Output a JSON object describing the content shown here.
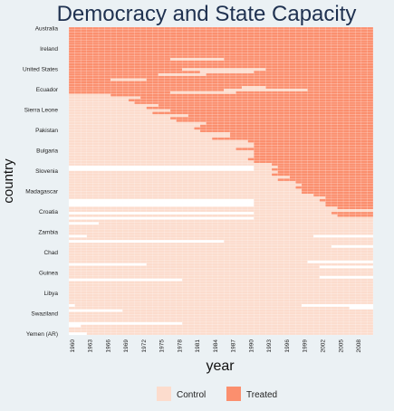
{
  "chart_data": {
    "type": "heatmap",
    "title": "Democracy and State Capacity",
    "xlabel": "year",
    "ylabel": "country",
    "x_start": 1960,
    "x_end": 2010,
    "x_tick_labels": [
      "1960",
      "1963",
      "1966",
      "1969",
      "1972",
      "1975",
      "1978",
      "1981",
      "1984",
      "1987",
      "1990",
      "1993",
      "1996",
      "1999",
      "2002",
      "2005",
      "2008"
    ],
    "y_tick_labels": [
      "Australia",
      "Ireland",
      "United States",
      "Ecuador",
      "Sierra Leone",
      "Pakistan",
      "Bulgaria",
      "Slovenia",
      "Madagascar",
      "Croatia",
      "Zambia",
      "Chad",
      "Guinea",
      "Libya",
      "Swaziland",
      "Yemen (AR)"
    ],
    "n_rows": 120,
    "categories": [
      "Control",
      "Treated"
    ],
    "legend": [
      {
        "label": "Control",
        "color": "#fcdccd"
      },
      {
        "label": "Treated",
        "color": "#fb8f6e"
      }
    ],
    "missing_color": "#ffffff",
    "legend_position": "bottom"
  }
}
